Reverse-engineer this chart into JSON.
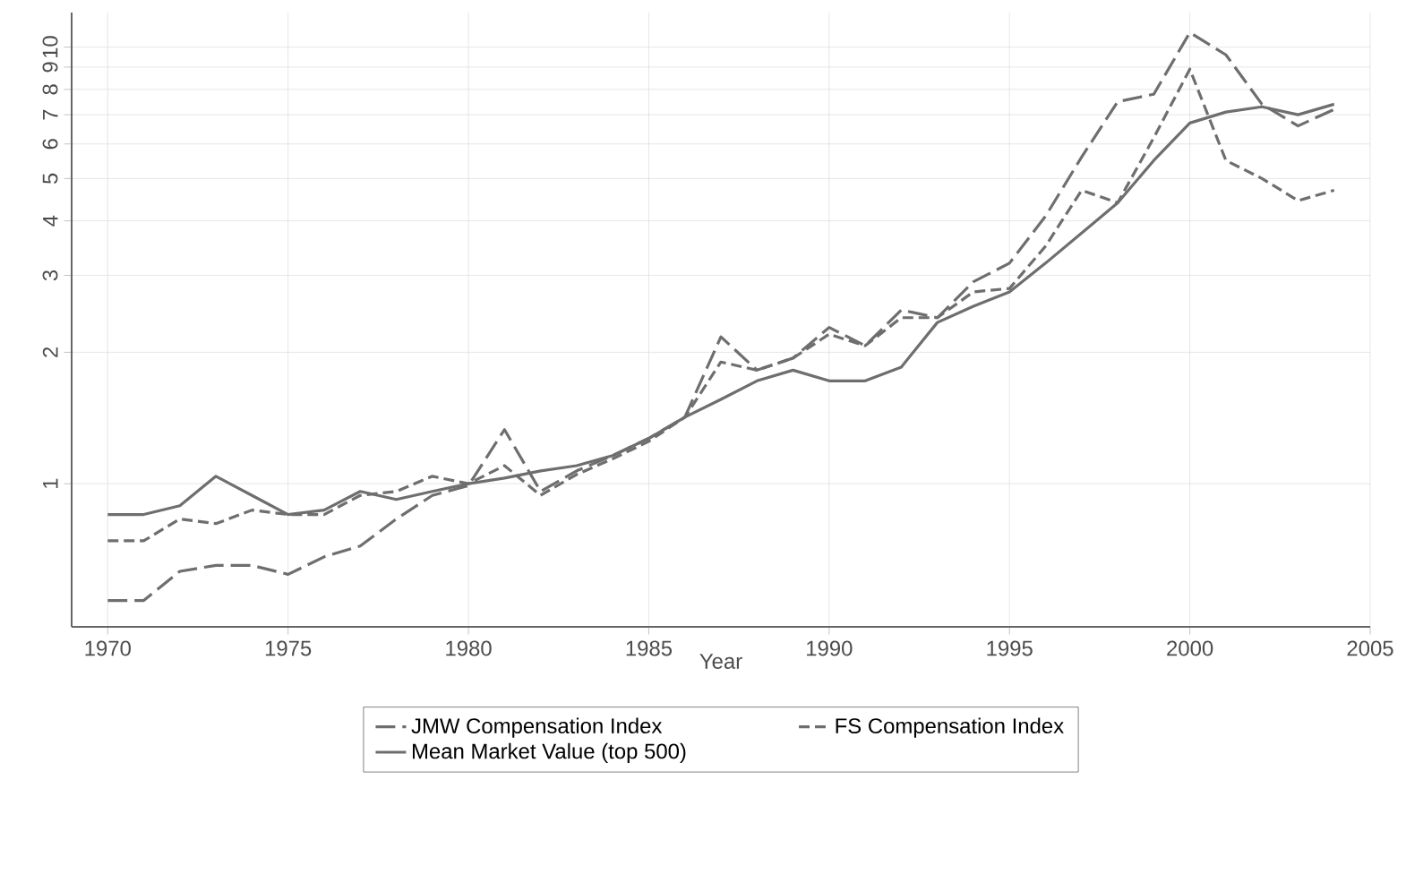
{
  "chart_data": {
    "type": "line",
    "xlabel": "Year",
    "log": "y",
    "grid": true,
    "legend": "bottom",
    "marker": "none",
    "x": [
      1970,
      1971,
      1972,
      1973,
      1974,
      1975,
      1976,
      1977,
      1978,
      1979,
      1980,
      1981,
      1982,
      1983,
      1984,
      1985,
      1986,
      1987,
      1988,
      1989,
      1990,
      1991,
      1992,
      1993,
      1994,
      1995,
      1996,
      1997,
      1998,
      1999,
      2000,
      2001,
      2002,
      2003,
      2004
    ],
    "xlim": [
      1969,
      2005
    ],
    "xticks": [
      1970,
      1975,
      1980,
      1985,
      1990,
      1995,
      2000,
      2005
    ],
    "ylim": [
      0.47,
      12
    ],
    "yticks": [
      1,
      2,
      3,
      4,
      5,
      6,
      7,
      8,
      9,
      10
    ],
    "series": [
      {
        "name": "JMW Compensation Index",
        "color": "#6e6e6e",
        "line_style": "longdash",
        "values": [
          0.54,
          0.54,
          0.63,
          0.65,
          0.65,
          0.62,
          0.68,
          0.72,
          0.83,
          0.94,
          0.99,
          1.33,
          0.96,
          1.07,
          1.16,
          1.27,
          1.42,
          2.17,
          1.82,
          1.94,
          2.28,
          2.07,
          2.5,
          2.4,
          2.9,
          3.2,
          4.1,
          5.6,
          7.5,
          7.8,
          10.8,
          9.6,
          7.4,
          6.6,
          7.2
        ]
      },
      {
        "name": "FS Compensation Index",
        "color": "#6e6e6e",
        "line_style": "dashed",
        "values": [
          0.74,
          0.74,
          0.83,
          0.81,
          0.87,
          0.85,
          0.85,
          0.94,
          0.96,
          1.04,
          1.0,
          1.1,
          0.94,
          1.05,
          1.14,
          1.25,
          1.42,
          1.9,
          1.82,
          1.94,
          2.2,
          2.07,
          2.4,
          2.4,
          2.75,
          2.8,
          3.5,
          4.7,
          4.4,
          6.2,
          8.9,
          5.5,
          5.0,
          4.45,
          4.7
        ]
      },
      {
        "name": "Mean Market Value (top 500)",
        "color": "#6e6e6e",
        "line_style": "solid",
        "values": [
          0.85,
          0.85,
          0.89,
          1.04,
          0.94,
          0.85,
          0.87,
          0.96,
          0.92,
          0.96,
          1.0,
          1.03,
          1.07,
          1.1,
          1.16,
          1.27,
          1.42,
          1.56,
          1.72,
          1.82,
          1.72,
          1.72,
          1.85,
          2.34,
          2.55,
          2.75,
          3.2,
          3.75,
          4.4,
          5.5,
          6.7,
          7.1,
          7.3,
          7.0,
          7.4
        ]
      }
    ]
  }
}
